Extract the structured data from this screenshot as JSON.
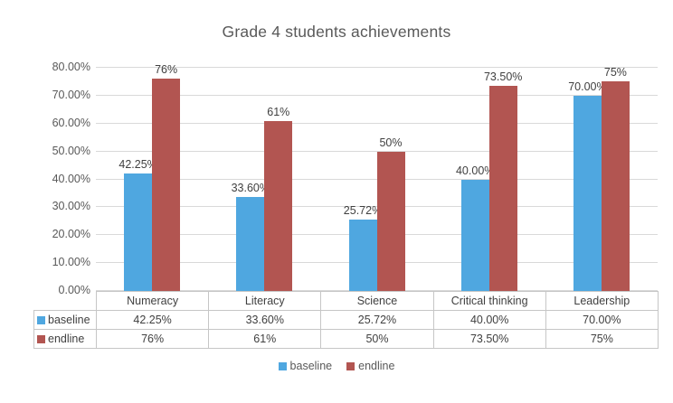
{
  "chart_data": {
    "type": "bar",
    "title": "Grade 4 students achievements",
    "categories": [
      "Numeracy",
      "Literacy",
      "Science",
      "Critical thinking",
      "Leadership"
    ],
    "series": [
      {
        "name": "baseline",
        "color": "#4FA7E0",
        "values": [
          42.25,
          33.6,
          25.72,
          40.0,
          70.0
        ],
        "labels": [
          "42.25%",
          "33.60%",
          "25.72%",
          "40.00%",
          "70.00%"
        ]
      },
      {
        "name": "endline",
        "color": "#B25551",
        "values": [
          76,
          61,
          50,
          73.5,
          75
        ],
        "labels": [
          "76%",
          "61%",
          "50%",
          "73.50%",
          "75%"
        ]
      }
    ],
    "ylim": [
      0,
      80
    ],
    "yticks": [
      "0.00%",
      "10.00%",
      "20.00%",
      "30.00%",
      "40.00%",
      "50.00%",
      "60.00%",
      "70.00%",
      "80.00%"
    ],
    "grid": true,
    "legend_position": "bottom",
    "data_table_shown": true,
    "colors": {
      "title_text": "#595959",
      "axis_text": "#595959",
      "label_text": "#404040",
      "gridline": "#D9D9D9",
      "table_border": "#C6C6C6",
      "background": "#FFFFFF"
    }
  }
}
